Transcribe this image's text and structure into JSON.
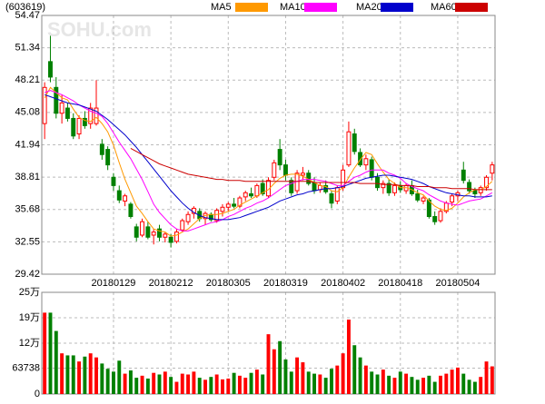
{
  "chart_data": [
    {
      "type": "candlestick",
      "title": "(603619)",
      "watermark": "SOHU.com",
      "categories": [
        null,
        null,
        null,
        null,
        null,
        null,
        null,
        null,
        null,
        null,
        null,
        null,
        "20180129",
        null,
        null,
        null,
        null,
        null,
        null,
        null,
        null,
        null,
        "20180212",
        null,
        null,
        null,
        null,
        null,
        null,
        null,
        null,
        null,
        "20180305",
        null,
        null,
        null,
        null,
        null,
        null,
        null,
        null,
        null,
        "20180319",
        null,
        null,
        null,
        null,
        null,
        null,
        null,
        null,
        null,
        "20180402",
        null,
        null,
        null,
        null,
        null,
        null,
        null,
        null,
        null,
        "20180418",
        null,
        null,
        null,
        null,
        null,
        null,
        null,
        null,
        null,
        "20180504",
        null,
        null,
        null,
        null,
        null,
        null
      ],
      "open": [
        44.0,
        50.0,
        47.5,
        45.0,
        45.5,
        44.5,
        43.0,
        44.5,
        44.0,
        44.0,
        42.0,
        41.5,
        38.8,
        37.5,
        36.5,
        36.2,
        34.0,
        33.2,
        34.0,
        33.2,
        33.8,
        33.0,
        33.0,
        32.6,
        33.7,
        34.5,
        35.3,
        35.5,
        34.8,
        35.2,
        34.6,
        35.5,
        35.9,
        36.2,
        36.0,
        36.9,
        37.2,
        37.0,
        38.2,
        37.0,
        38.8,
        41.5,
        40.0,
        38.5,
        37.5,
        39.0,
        39.2,
        38.3,
        37.6,
        38.0,
        37.2,
        36.5,
        37.8,
        40.0,
        43.0,
        41.2,
        40.0,
        40.5,
        38.8,
        37.8,
        38.2,
        37.3,
        38.0,
        37.5,
        38.0,
        37.2,
        36.5,
        36.6,
        35.0,
        34.6,
        35.5,
        36.4,
        37.0,
        39.5,
        38.3,
        37.5,
        37.3,
        37.8,
        39.2
      ],
      "high": [
        48.0,
        52.5,
        48.5,
        46.8,
        46.0,
        45.0,
        44.8,
        45.2,
        46.0,
        48.2,
        42.5,
        41.8,
        39.2,
        38.0,
        37.2,
        36.4,
        34.3,
        34.8,
        34.5,
        33.8,
        34.2,
        33.5,
        33.3,
        33.8,
        34.8,
        35.5,
        36.0,
        35.8,
        35.5,
        35.4,
        35.8,
        36.2,
        36.4,
        36.8,
        37.0,
        37.5,
        37.8,
        38.2,
        38.6,
        38.8,
        40.5,
        42.5,
        40.5,
        38.8,
        39.5,
        39.8,
        39.5,
        38.8,
        38.3,
        38.5,
        37.5,
        38.0,
        40.0,
        44.2,
        43.5,
        41.6,
        41.0,
        40.8,
        39.2,
        38.5,
        38.6,
        38.3,
        38.4,
        38.2,
        38.5,
        37.6,
        37.0,
        36.8,
        35.5,
        35.8,
        36.5,
        37.2,
        37.5,
        40.3,
        38.6,
        37.8,
        38.0,
        39.0,
        40.3
      ],
      "low": [
        42.5,
        48.0,
        44.5,
        44.0,
        44.2,
        42.5,
        42.5,
        43.5,
        43.5,
        43.8,
        40.5,
        39.5,
        37.5,
        36.3,
        36.0,
        34.8,
        32.6,
        33.0,
        32.8,
        32.3,
        32.6,
        32.5,
        32.0,
        32.4,
        33.5,
        34.2,
        34.8,
        34.5,
        34.2,
        34.5,
        34.4,
        35.0,
        35.5,
        35.8,
        35.8,
        36.5,
        36.8,
        36.8,
        37.0,
        36.8,
        38.5,
        39.5,
        38.5,
        37.0,
        37.2,
        38.5,
        38.0,
        37.2,
        37.3,
        37.2,
        35.8,
        36.2,
        37.5,
        39.8,
        41.0,
        39.8,
        39.5,
        38.5,
        37.5,
        37.2,
        37.0,
        37.0,
        37.3,
        37.2,
        37.0,
        36.4,
        36.2,
        34.8,
        34.2,
        34.4,
        35.3,
        36.0,
        36.5,
        38.2,
        37.2,
        36.8,
        37.0,
        37.5,
        38.5
      ],
      "close": [
        47.5,
        48.5,
        45.0,
        46.0,
        44.5,
        42.8,
        44.5,
        43.8,
        45.5,
        45.5,
        41.0,
        40.0,
        38.0,
        36.6,
        37.0,
        35.0,
        33.0,
        34.5,
        33.0,
        33.5,
        33.0,
        33.3,
        32.5,
        33.5,
        34.6,
        35.2,
        35.8,
        34.8,
        35.3,
        34.7,
        35.6,
        35.9,
        36.2,
        36.0,
        36.8,
        37.3,
        37.0,
        38.0,
        37.2,
        38.5,
        40.2,
        40.0,
        39.0,
        37.3,
        39.2,
        39.2,
        38.2,
        37.5,
        38.0,
        37.4,
        36.3,
        37.8,
        39.5,
        43.2,
        41.3,
        40.0,
        40.6,
        38.8,
        37.8,
        38.2,
        37.3,
        38.0,
        37.6,
        38.0,
        37.2,
        36.6,
        36.8,
        35.0,
        34.5,
        35.5,
        36.3,
        37.0,
        37.3,
        38.5,
        37.5,
        37.2,
        37.8,
        38.8,
        40.0
      ],
      "up_color": "#ff0000",
      "down_color": "#008000",
      "series": [
        {
          "name": "MA5",
          "color": "#ff9900",
          "values": [
            46.5,
            47.5,
            47.0,
            46.5,
            46.3,
            45.4,
            44.6,
            44.3,
            44.2,
            44.6,
            44.0,
            43.2,
            41.9,
            40.2,
            38.6,
            37.3,
            36.0,
            35.3,
            34.5,
            33.8,
            33.6,
            33.5,
            33.1,
            33.2,
            33.5,
            33.8,
            34.3,
            34.8,
            35.1,
            35.2,
            35.2,
            35.3,
            35.5,
            35.7,
            36.1,
            36.4,
            36.7,
            37.0,
            37.3,
            37.6,
            38.2,
            38.7,
            39.0,
            39.1,
            39.1,
            38.9,
            38.6,
            38.3,
            38.0,
            37.9,
            37.5,
            37.4,
            37.8,
            38.8,
            39.7,
            40.5,
            41.2,
            41.0,
            40.1,
            39.3,
            38.6,
            38.2,
            37.8,
            37.8,
            37.6,
            37.3,
            37.1,
            36.5,
            36.0,
            35.7,
            35.6,
            35.8,
            36.3,
            36.9,
            37.3,
            37.6,
            37.6,
            37.9,
            38.4
          ]
        },
        {
          "name": "MA10",
          "color": "#ff00ff",
          "values": [
            47.0,
            47.2,
            47.0,
            46.8,
            46.5,
            46.2,
            45.8,
            45.5,
            45.2,
            45.0,
            44.7,
            44.0,
            43.1,
            42.2,
            41.4,
            40.6,
            39.6,
            38.6,
            37.4,
            36.2,
            35.4,
            34.8,
            34.2,
            33.8,
            33.6,
            33.6,
            33.8,
            34.0,
            34.2,
            34.4,
            34.5,
            34.7,
            35.0,
            35.2,
            35.5,
            35.8,
            36.0,
            36.3,
            36.5,
            36.8,
            37.2,
            37.6,
            38.0,
            38.2,
            38.4,
            38.6,
            38.6,
            38.6,
            38.5,
            38.4,
            38.2,
            38.0,
            38.0,
            38.4,
            38.8,
            39.0,
            39.3,
            39.5,
            39.5,
            39.5,
            39.2,
            39.0,
            38.7,
            38.2,
            37.9,
            37.7,
            37.5,
            37.1,
            36.8,
            36.5,
            36.3,
            36.2,
            36.1,
            36.3,
            36.5,
            36.6,
            36.7,
            37.0,
            37.3
          ]
        },
        {
          "name": "MA20",
          "color": "#0000cc",
          "values": [
            46.8,
            46.6,
            46.4,
            46.2,
            46.0,
            45.9,
            45.8,
            45.6,
            45.4,
            45.2,
            44.8,
            44.4,
            43.9,
            43.4,
            42.9,
            42.3,
            41.7,
            41.0,
            40.3,
            39.6,
            38.9,
            38.2,
            37.5,
            36.9,
            36.3,
            35.8,
            35.4,
            35.1,
            34.9,
            34.8,
            34.7,
            34.7,
            34.7,
            34.8,
            34.9,
            35.1,
            35.3,
            35.5,
            35.7,
            35.9,
            36.2,
            36.5,
            36.7,
            36.9,
            37.1,
            37.2,
            37.4,
            37.5,
            37.6,
            37.7,
            37.7,
            37.8,
            37.9,
            38.1,
            38.3,
            38.5,
            38.7,
            38.8,
            38.9,
            39.0,
            39.0,
            38.9,
            38.8,
            38.7,
            38.6,
            38.4,
            38.2,
            37.9,
            37.7,
            37.5,
            37.3,
            37.2,
            37.1,
            37.0,
            37.0,
            36.9,
            36.9,
            36.9,
            37.0
          ]
        },
        {
          "name": "MA60",
          "color": "#cc0000",
          "values": [
            null,
            null,
            null,
            null,
            null,
            null,
            null,
            null,
            null,
            null,
            null,
            null,
            null,
            null,
            null,
            41.6,
            41.3,
            41.0,
            40.7,
            40.4,
            40.1,
            39.9,
            39.7,
            39.5,
            39.3,
            39.1,
            39.0,
            38.9,
            38.8,
            38.7,
            38.6,
            38.6,
            38.5,
            38.5,
            38.5,
            38.4,
            38.4,
            38.4,
            38.4,
            38.4,
            38.4,
            38.4,
            38.4,
            38.4,
            38.4,
            38.4,
            38.4,
            38.3,
            38.3,
            38.3,
            38.3,
            38.3,
            38.3,
            38.3,
            38.3,
            38.2,
            38.2,
            38.2,
            38.2,
            38.1,
            38.1,
            38.1,
            38.0,
            38.0,
            38.0,
            37.9,
            37.9,
            37.9,
            37.8,
            37.8,
            37.8,
            37.7,
            37.7,
            37.7,
            37.7,
            37.6,
            37.6,
            37.6,
            37.6
          ]
        }
      ],
      "legend": "top",
      "ylim": [
        29.42,
        54.47
      ],
      "yticks": [
        29.42,
        32.55,
        35.68,
        38.81,
        41.94,
        45.08,
        48.21,
        51.34,
        54.47
      ],
      "grid": true
    },
    {
      "type": "bar",
      "values": [
        200000,
        200000,
        155000,
        100000,
        95000,
        95000,
        80000,
        92000,
        100000,
        90000,
        75000,
        62000,
        55000,
        82000,
        50000,
        58000,
        40000,
        45000,
        38000,
        52000,
        48000,
        55000,
        42000,
        30000,
        50000,
        48000,
        55000,
        40000,
        35000,
        42000,
        48000,
        36000,
        38000,
        52000,
        45000,
        40000,
        52000,
        60000,
        48000,
        147000,
        110000,
        130000,
        85000,
        55000,
        90000,
        78000,
        55000,
        50000,
        48000,
        40000,
        62000,
        70000,
        100000,
        183000,
        120000,
        90000,
        70000,
        55000,
        48000,
        60000,
        45000,
        40000,
        55000,
        50000,
        42000,
        35000,
        40000,
        45000,
        30000,
        45000,
        50000,
        60000,
        65000,
        50000,
        35000,
        30000,
        42000,
        80000,
        68000
      ],
      "ylim": [
        0,
        250000
      ],
      "yticks": [
        0,
        63738,
        {
          "value": 125000,
          "label": "12万"
        },
        {
          "value": 187500,
          "label": "19万"
        },
        {
          "value": 250000,
          "label": "25万"
        }
      ],
      "grid": true
    }
  ]
}
